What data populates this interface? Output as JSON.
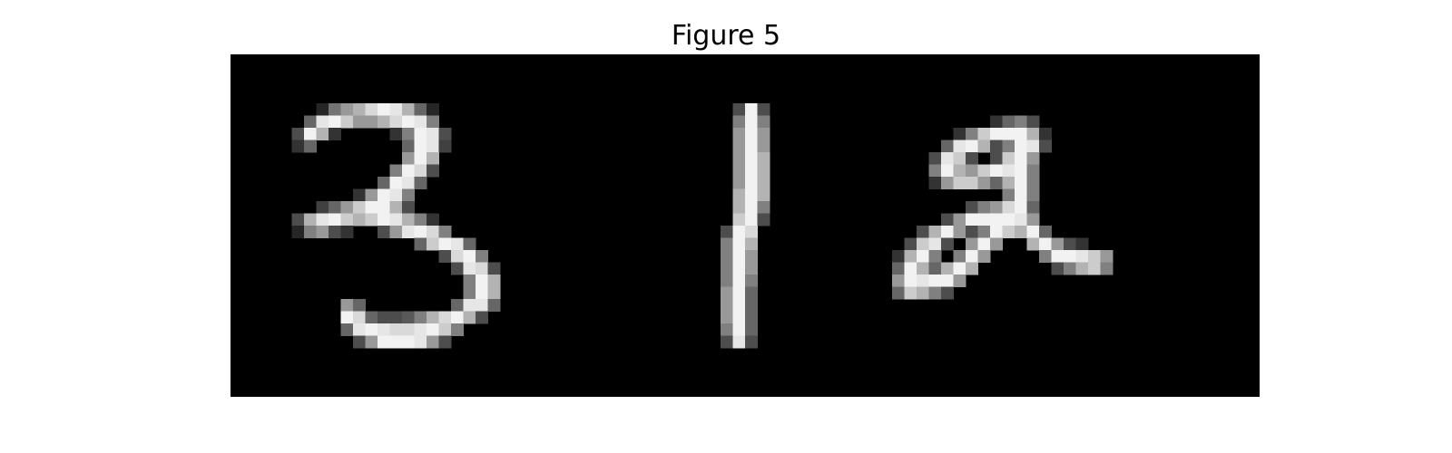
{
  "figure": {
    "title": "Figure 5"
  },
  "image": {
    "description_digits": [
      "3",
      "1",
      "2"
    ],
    "background_color": "#000000",
    "stroke_color": "#ffffff",
    "pixel_grid": {
      "cols": 84,
      "rows": 28
    }
  }
}
